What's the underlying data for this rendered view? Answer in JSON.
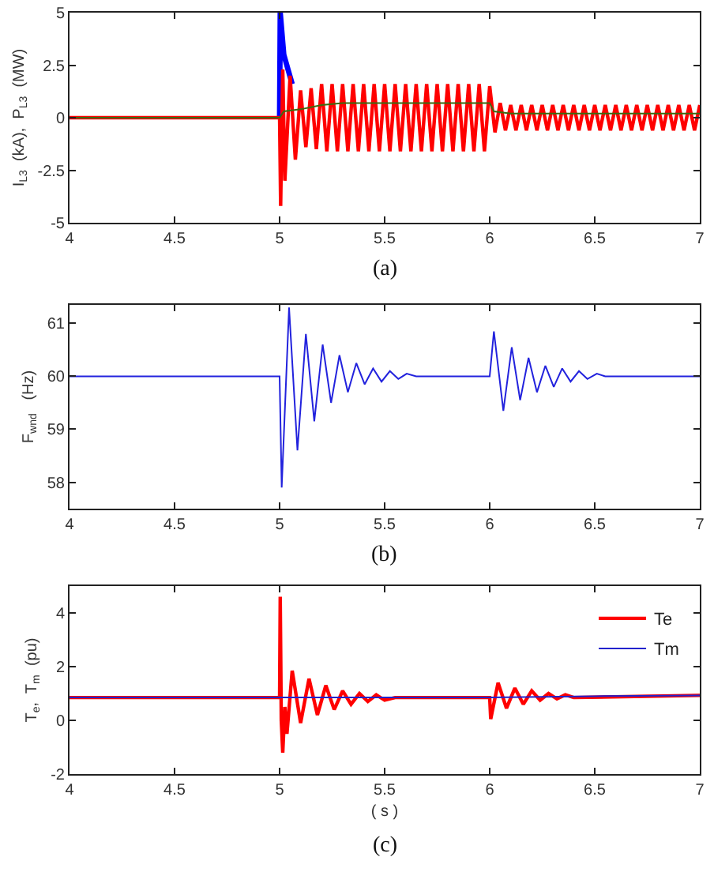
{
  "chart_data": [
    {
      "type": "line",
      "ylabel": "I$_{L3}$  (kA),  P$_{L3}$  (MW)",
      "annotations": [
        "(a)"
      ],
      "xlim": [
        4,
        7
      ],
      "xticks": [
        4,
        4.5,
        5,
        5.5,
        6,
        6.5,
        7
      ],
      "ylim": [
        -5,
        5
      ],
      "yticks": [
        -5,
        -2.5,
        0,
        2.5,
        5
      ],
      "series": [
        {
          "color": "#0000ff",
          "x": [
            5,
            5.003,
            5.02,
            5.04,
            5.06
          ],
          "values": [
            0,
            5,
            3,
            2.3,
            1.6
          ]
        },
        {
          "color": "#ff0000",
          "x": [
            4,
            5,
            5.005,
            5.015,
            5.025,
            5.05,
            5.075,
            5.1,
            5.125,
            5.15,
            5.175,
            5.2,
            5.225,
            5.25,
            5.275,
            5.3,
            5.325,
            5.35,
            5.375,
            5.4,
            5.425,
            5.45,
            5.475,
            5.5,
            5.525,
            5.55,
            5.575,
            5.6,
            5.625,
            5.65,
            5.675,
            5.7,
            5.725,
            5.75,
            5.775,
            5.8,
            5.825,
            5.85,
            5.875,
            5.9,
            5.925,
            5.95,
            5.975,
            6,
            6.025,
            6.05,
            6.075,
            6.1,
            6.125,
            6.15,
            6.175,
            6.2,
            6.225,
            6.25,
            6.275,
            6.3,
            6.325,
            6.35,
            6.375,
            6.4,
            6.425,
            6.45,
            6.475,
            6.5,
            6.525,
            6.55,
            6.575,
            6.6,
            6.625,
            6.65,
            6.675,
            6.7,
            6.725,
            6.75,
            6.775,
            6.8,
            6.825,
            6.85,
            6.875,
            6.9,
            6.925,
            6.95,
            6.975,
            7
          ],
          "values": [
            0,
            0,
            -4.2,
            2.3,
            -3,
            2,
            -2,
            1.3,
            -1.4,
            1.4,
            -1.5,
            1.6,
            -1.6,
            1.6,
            -1.6,
            1.6,
            -1.6,
            1.6,
            -1.6,
            1.6,
            -1.6,
            1.6,
            -1.6,
            1.6,
            -1.6,
            1.6,
            -1.6,
            1.6,
            -1.6,
            1.6,
            -1.6,
            1.6,
            -1.6,
            1.6,
            -1.6,
            1.6,
            -1.6,
            1.6,
            -1.6,
            1.6,
            -1.6,
            1.6,
            -1.6,
            1.5,
            -0.7,
            0.7,
            -0.6,
            0.6,
            -0.6,
            0.6,
            -0.6,
            0.6,
            -0.6,
            0.6,
            -0.6,
            0.6,
            -0.6,
            0.6,
            -0.6,
            0.6,
            -0.6,
            0.6,
            -0.6,
            0.6,
            -0.6,
            0.6,
            -0.6,
            0.6,
            -0.6,
            0.6,
            -0.6,
            0.6,
            -0.6,
            0.6,
            -0.6,
            0.6,
            -0.6,
            0.6,
            -0.6,
            0.6,
            -0.6,
            0.6,
            -0.6,
            0.6
          ]
        },
        {
          "color": "#3a6b10",
          "x": [
            4,
            5,
            5.02,
            5.1,
            5.2,
            5.3,
            5.9,
            6,
            6.02,
            6.1,
            7
          ],
          "values": [
            0,
            0,
            0.3,
            0.4,
            0.6,
            0.7,
            0.7,
            0.7,
            0.3,
            0.2,
            0.2
          ]
        }
      ]
    },
    {
      "type": "line",
      "ylabel": "F$_{wnd}$   (Hz)",
      "annotations": [
        "(b)"
      ],
      "xlim": [
        4,
        7
      ],
      "xticks": [
        4,
        4.5,
        5,
        5.5,
        6,
        6.5,
        7
      ],
      "ylim": [
        57.5,
        61.35
      ],
      "yticks": [
        58,
        59,
        60,
        61
      ],
      "series": [
        {
          "color": "#2222dd",
          "x": [
            4,
            4.8,
            5,
            5.01,
            5.045,
            5.085,
            5.125,
            5.165,
            5.205,
            5.245,
            5.285,
            5.325,
            5.365,
            5.405,
            5.445,
            5.485,
            5.525,
            5.565,
            5.605,
            5.65,
            6,
            6.02,
            6.065,
            6.105,
            6.145,
            6.185,
            6.225,
            6.265,
            6.305,
            6.345,
            6.385,
            6.425,
            6.465,
            6.51,
            6.55,
            7
          ],
          "values": [
            60,
            60,
            60,
            57.9,
            61.3,
            58.6,
            60.8,
            59.15,
            60.6,
            59.5,
            60.4,
            59.7,
            60.25,
            59.85,
            60.15,
            59.9,
            60.1,
            59.95,
            60.05,
            60,
            60,
            60.85,
            59.35,
            60.55,
            59.55,
            60.35,
            59.7,
            60.2,
            59.8,
            60.15,
            59.9,
            60.1,
            59.95,
            60.05,
            60,
            60
          ]
        }
      ]
    },
    {
      "type": "line",
      "ylabel": "T$_{e}$,  T$_{m}$  (pu)",
      "xlabel": "( s )",
      "annotations": [
        "(c)"
      ],
      "legend": "top right",
      "xlim": [
        4,
        7
      ],
      "xticks": [
        4,
        4.5,
        5,
        5.5,
        6,
        6.5,
        7
      ],
      "ylim": [
        -2,
        5
      ],
      "yticks": [
        -2,
        0,
        2,
        4
      ],
      "series": [
        {
          "name": "Te",
          "color": "#ff0000",
          "x": [
            4,
            5,
            5.003,
            5.008,
            5.015,
            5.025,
            5.035,
            5.06,
            5.1,
            5.14,
            5.18,
            5.22,
            5.26,
            5.3,
            5.34,
            5.38,
            5.42,
            5.46,
            5.5,
            5.55,
            6,
            6.005,
            6.04,
            6.08,
            6.12,
            6.16,
            6.2,
            6.24,
            6.28,
            6.32,
            6.36,
            6.4,
            7
          ],
          "values": [
            0.85,
            0.85,
            4.6,
            0,
            -1.2,
            0.5,
            -0.5,
            1.85,
            -0.1,
            1.55,
            0.2,
            1.3,
            0.4,
            1.1,
            0.6,
            1,
            0.7,
            0.95,
            0.75,
            0.85,
            0.85,
            0.05,
            1.4,
            0.45,
            1.2,
            0.6,
            1.1,
            0.75,
            1,
            0.8,
            0.95,
            0.85,
            0.93
          ]
        },
        {
          "name": "Tm",
          "color": "#2222cc",
          "x": [
            4,
            6,
            6.5,
            7
          ],
          "values": [
            0.85,
            0.85,
            0.9,
            0.93
          ]
        }
      ]
    }
  ]
}
